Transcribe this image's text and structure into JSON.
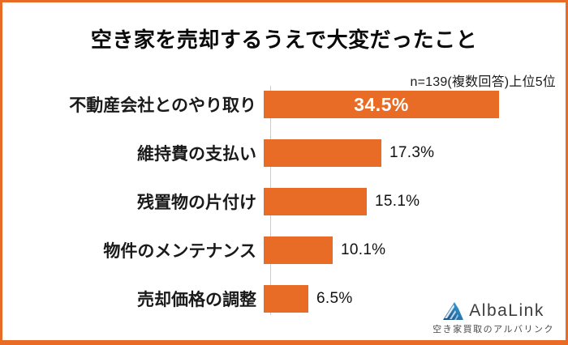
{
  "frame": {
    "background": "#ffffff",
    "border_color": "#e86c25"
  },
  "chart_data": {
    "type": "bar",
    "orientation": "horizontal",
    "title": "空き家を売却するうえで大変だったこと",
    "note": "n=139(複数回答)上位5位",
    "categories": [
      "不動産会社とのやり取り",
      "維持費の支払い",
      "残置物の片付け",
      "物件のメンテナンス",
      "売却価格の調整"
    ],
    "values": [
      34.5,
      17.3,
      15.1,
      10.1,
      6.5
    ],
    "value_labels": [
      "34.5%",
      "17.3%",
      "15.1%",
      "10.1%",
      "6.5%"
    ],
    "value_label_positions": [
      "inside",
      "outside",
      "outside",
      "outside",
      "outside"
    ],
    "xlim": [
      0,
      40
    ],
    "grid": false,
    "legend": "none",
    "bar_color": "#e86c25",
    "axis_line_color": "#cccccc"
  },
  "branding": {
    "logo_text": "AlbaLink",
    "tagline": "空き家買取のアルバリンク",
    "icon": "mountain-logo-icon",
    "colors": {
      "blue_dark": "#164a7c",
      "blue_mid": "#2a7db5",
      "blue_light": "#45b0e6",
      "text": "#3d3d3d"
    }
  }
}
